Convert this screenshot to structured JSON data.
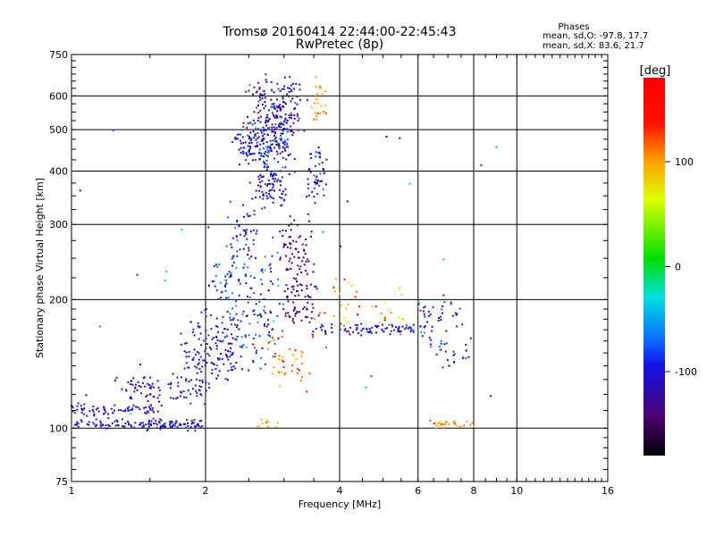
{
  "chart_data": {
    "type": "scatter",
    "title": "Tromsø 20160414 22:44:00-22:45:43",
    "subtitle": "RwPretec (8p)",
    "stats": {
      "heading": "Phases",
      "o_line": "mean, sd,O: -97.8, 17.7",
      "x_line": "mean, sd,X:  83.6, 21.7"
    },
    "xlabel": "Frequency [MHz]",
    "ylabel": "Stationary phase Virtual Height [km]",
    "xscale": "log",
    "yscale": "log",
    "xlim": [
      1,
      16
    ],
    "ylim": [
      75,
      750
    ],
    "grid": true,
    "x_ticks": [
      {
        "value": 1,
        "label": "1"
      },
      {
        "value": 2,
        "label": "2"
      },
      {
        "value": 4,
        "label": "4"
      },
      {
        "value": 6,
        "label": "6"
      },
      {
        "value": 8,
        "label": "8"
      },
      {
        "value": 10,
        "label": "10"
      },
      {
        "value": 16,
        "label": "16"
      }
    ],
    "y_ticks": [
      {
        "value": 75,
        "label": "75"
      },
      {
        "value": 100,
        "label": "100"
      },
      {
        "value": 200,
        "label": "200"
      },
      {
        "value": 300,
        "label": "300"
      },
      {
        "value": 400,
        "label": "400"
      },
      {
        "value": 500,
        "label": "500"
      },
      {
        "value": 600,
        "label": "600"
      },
      {
        "value": 750,
        "label": "750"
      }
    ],
    "colorbar": {
      "label": "[deg]",
      "range": [
        -180,
        180
      ],
      "ticks": [
        {
          "value": 100,
          "label": "100"
        },
        {
          "value": 0,
          "label": "0"
        },
        {
          "value": -100,
          "label": "-100"
        }
      ]
    },
    "point_groups": [
      {
        "x": [
          1.0,
          2.0
        ],
        "y": [
          100,
          104
        ],
        "n": 130,
        "sx": 0.01,
        "sy": 0.008,
        "phase": -100,
        "ps": 8
      },
      {
        "x": [
          1.0,
          1.6
        ],
        "y": [
          109,
          112
        ],
        "n": 70,
        "sx": 0.01,
        "sy": 0.012,
        "phase": -100,
        "ps": 8
      },
      {
        "x": [
          1.3,
          2.0
        ],
        "y": [
          118,
          128
        ],
        "n": 90,
        "sx": 0.02,
        "sy": 0.025,
        "phase": -105,
        "ps": 10
      },
      {
        "x": [
          1.8,
          2.4
        ],
        "y": [
          135,
          170
        ],
        "n": 130,
        "sx": 0.035,
        "sy": 0.06,
        "phase": -100,
        "ps": 12
      },
      {
        "x": [
          2.1,
          2.9
        ],
        "y": [
          150,
          250
        ],
        "n": 160,
        "sx": 0.03,
        "sy": 0.08,
        "phase": -90,
        "ps": 30
      },
      {
        "x": [
          2.3,
          2.6
        ],
        "y": [
          250,
          330
        ],
        "n": 50,
        "sx": 0.015,
        "sy": 0.04,
        "phase": -100,
        "ps": 20
      },
      {
        "x": [
          2.4,
          3.1
        ],
        "y": [
          420,
          520
        ],
        "n": 230,
        "sx": 0.03,
        "sy": 0.05,
        "phase": -100,
        "ps": 20
      },
      {
        "x": [
          2.6,
          3.2
        ],
        "y": [
          520,
          640
        ],
        "n": 140,
        "sx": 0.03,
        "sy": 0.04,
        "phase": -110,
        "ps": 25
      },
      {
        "x": [
          2.6,
          3.0
        ],
        "y": [
          340,
          400
        ],
        "n": 80,
        "sx": 0.02,
        "sy": 0.04,
        "phase": -100,
        "ps": 15
      },
      {
        "x": [
          3.0,
          3.4
        ],
        "y": [
          230,
          300
        ],
        "n": 70,
        "sx": 0.02,
        "sy": 0.04,
        "phase": -135,
        "ps": 15
      },
      {
        "x": [
          3.0,
          3.5
        ],
        "y": [
          180,
          215
        ],
        "n": 60,
        "sx": 0.02,
        "sy": 0.03,
        "phase": -135,
        "ps": 15
      },
      {
        "x": [
          3.4,
          3.7
        ],
        "y": [
          360,
          430
        ],
        "n": 50,
        "sx": 0.015,
        "sy": 0.04,
        "phase": -95,
        "ps": 15
      },
      {
        "x": [
          3.5,
          3.7
        ],
        "y": [
          530,
          620
        ],
        "n": 25,
        "sx": 0.01,
        "sy": 0.03,
        "phase": 100,
        "ps": 10
      },
      {
        "x": [
          2.8,
          3.4
        ],
        "y": [
          130,
          165
        ],
        "n": 45,
        "sx": 0.02,
        "sy": 0.05,
        "phase": 110,
        "ps": 20
      },
      {
        "x": [
          3.4,
          6.4
        ],
        "y": [
          168,
          175
        ],
        "n": 90,
        "sx": 0.02,
        "sy": 0.01,
        "phase": -105,
        "ps": 15
      },
      {
        "x": [
          3.6,
          5.6
        ],
        "y": [
          175,
          215
        ],
        "n": 40,
        "sx": 0.03,
        "sy": 0.04,
        "phase": 110,
        "ps": 30
      },
      {
        "x": [
          6.0,
          7.6
        ],
        "y": [
          175,
          200
        ],
        "n": 30,
        "sx": 0.02,
        "sy": 0.03,
        "phase": -95,
        "ps": 15
      },
      {
        "x": [
          6.3,
          7.8
        ],
        "y": [
          145,
          165
        ],
        "n": 30,
        "sx": 0.02,
        "sy": 0.03,
        "phase": -100,
        "ps": 20
      },
      {
        "x": [
          6.4,
          8.0
        ],
        "y": [
          101,
          104
        ],
        "n": 30,
        "sx": 0.01,
        "sy": 0.008,
        "phase": 105,
        "ps": 15
      },
      {
        "x": [
          2.6,
          2.9
        ],
        "y": [
          101,
          104
        ],
        "n": 12,
        "sx": 0.01,
        "sy": 0.01,
        "phase": 100,
        "ps": 10
      },
      {
        "x": [
          1.0,
          10.0
        ],
        "y": [
          100,
          500
        ],
        "n": 40,
        "sx": 0.05,
        "sy": 0.05,
        "phase": -90,
        "ps": 60
      }
    ]
  }
}
